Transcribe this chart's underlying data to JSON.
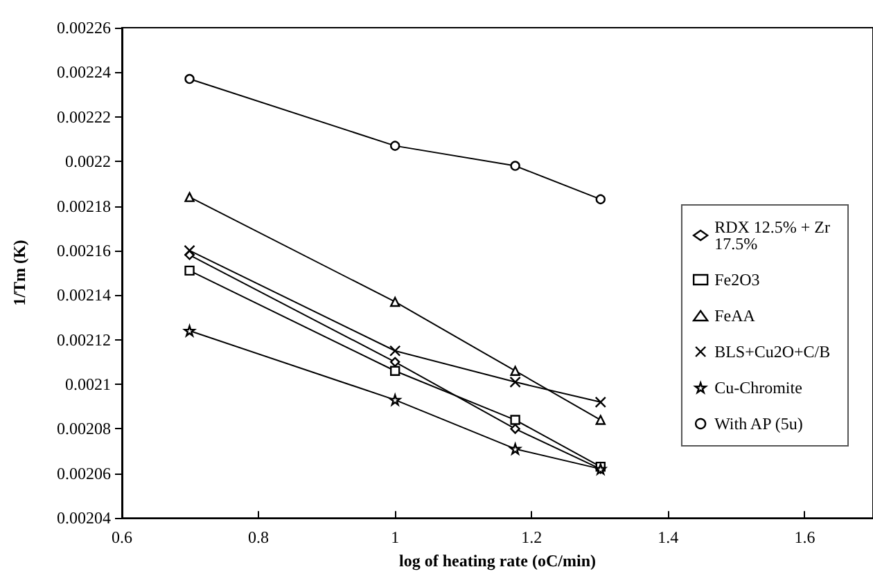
{
  "chart_data": {
    "type": "line",
    "xlabel": "log of heating rate (oC/min)",
    "ylabel": "1/Tm (K)",
    "xlim": [
      0.6,
      1.7
    ],
    "xticks": [
      0.6,
      0.8,
      1,
      1.2,
      1.4,
      1.6
    ],
    "ylim": [
      0.00204,
      0.00226
    ],
    "yticks": [
      0.00204,
      0.00206,
      0.00208,
      0.0021,
      0.00212,
      0.00214,
      0.00216,
      0.00218,
      0.0022,
      0.00222,
      0.00224,
      0.00226
    ],
    "x": [
      0.699,
      1.0,
      1.176,
      1.301
    ],
    "grid": false,
    "legend": "right",
    "series": [
      {
        "name": "RDX 12.5% + Zr 17.5%",
        "color": "#000000",
        "marker": "diamond",
        "values": [
          0.002158,
          0.00211,
          0.00208,
          0.002062
        ]
      },
      {
        "name": "Fe2O3",
        "color": "#000000",
        "marker": "square",
        "values": [
          0.002151,
          0.002106,
          0.002084,
          0.002063
        ]
      },
      {
        "name": "FeAA",
        "color": "#000000",
        "marker": "triangle",
        "values": [
          0.002184,
          0.002137,
          0.002106,
          0.002084
        ]
      },
      {
        "name": "BLS+Cu2O+C/B",
        "color": "#000000",
        "marker": "cross",
        "values": [
          0.00216,
          0.002115,
          0.002101,
          0.002092
        ]
      },
      {
        "name": "Cu-Chromite",
        "color": "#000000",
        "marker": "star",
        "values": [
          0.002124,
          0.002093,
          0.002071,
          0.002062
        ]
      },
      {
        "name": "With AP (5u)",
        "color": "#000000",
        "marker": "circle",
        "values": [
          0.002237,
          0.002207,
          0.002198,
          0.002183
        ]
      }
    ]
  }
}
